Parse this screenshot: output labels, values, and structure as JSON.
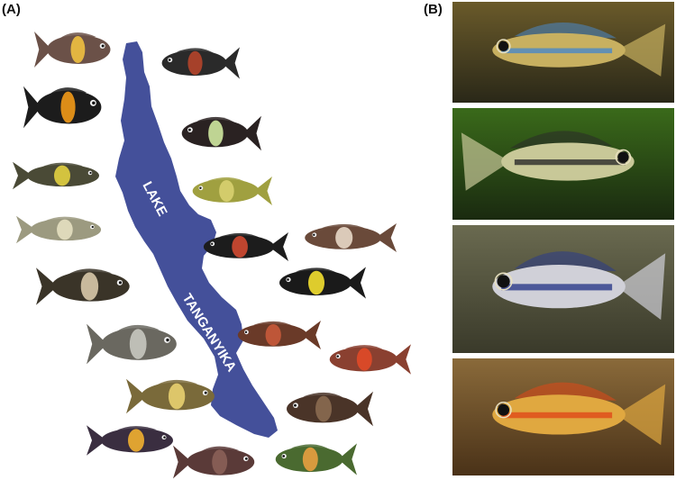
{
  "panel_a": {
    "label": "(A)",
    "lake_text_line1": "LAKE",
    "lake_text_line2": "TANGANYIKA",
    "colors": {
      "lake": "#44509a",
      "lake_text": "#ffffff"
    },
    "fish": [
      {
        "name": "fish-tropheus-1",
        "body": "#6b5148",
        "band": "#f0c040"
      },
      {
        "name": "fish-tropheus-2",
        "body": "#2a2a2a",
        "band": "#b4442a"
      },
      {
        "name": "fish-tropheus-3",
        "body": "#1c1c1c",
        "band": "#f29a18"
      },
      {
        "name": "fish-tropheus-4",
        "body": "#2a2222",
        "band": "#cfe8a0"
      },
      {
        "name": "fish-tropheus-5",
        "body": "#4a4a36",
        "band": "#e2d040"
      },
      {
        "name": "fish-tropheus-6",
        "body": "#a0a040",
        "band": "#d8d070"
      },
      {
        "name": "fish-tropheus-7",
        "body": "#9c9a80",
        "band": "#e6e0c0"
      },
      {
        "name": "fish-tropheus-8",
        "body": "#1c1c1c",
        "band": "#d24a32"
      },
      {
        "name": "fish-tropheus-9",
        "body": "#6a4a3a",
        "band": "#e8d8c8"
      },
      {
        "name": "fish-tropheus-10",
        "body": "#3a3428",
        "band": "#d8c8a8"
      },
      {
        "name": "fish-tropheus-11",
        "body": "#1a1a1a",
        "band": "#f4e030"
      },
      {
        "name": "fish-tropheus-12",
        "body": "#6a6860",
        "band": "#c8c8c0"
      },
      {
        "name": "fish-tropheus-13",
        "body": "#6a3a28",
        "band": "#c85a3a"
      },
      {
        "name": "fish-tropheus-14",
        "body": "#7a6a3a",
        "band": "#e8d070"
      },
      {
        "name": "fish-tropheus-15",
        "body": "#8a4030",
        "band": "#e04a28"
      },
      {
        "name": "fish-tropheus-16",
        "body": "#4a3428",
        "band": "#8a6a50"
      },
      {
        "name": "fish-tropheus-17",
        "body": "#3a2e40",
        "band": "#f2b030"
      },
      {
        "name": "fish-tropheus-18",
        "body": "#5a3a38",
        "band": "#8a6058"
      },
      {
        "name": "fish-tropheus-19",
        "body": "#4a6a30",
        "band": "#e8a040"
      }
    ]
  },
  "panel_b": {
    "label": "(B)",
    "photos": [
      {
        "name": "photo-apistogramma-1",
        "bg_top": "#6a5a2a",
        "bg_bottom": "#2a2818",
        "fish_body": "#c8b060",
        "fish_accent": "#4a88c8"
      },
      {
        "name": "photo-apistogramma-2",
        "bg_top": "#3a6a1a",
        "bg_bottom": "#1a2a10",
        "fish_body": "#c8c898",
        "fish_accent": "#2a2a2a"
      },
      {
        "name": "photo-apistogramma-3",
        "bg_top": "#6a6a50",
        "bg_bottom": "#3a3a2a",
        "fish_body": "#d0d0d8",
        "fish_accent": "#2a3a8a"
      },
      {
        "name": "photo-apistogramma-4",
        "bg_top": "#8a6a3a",
        "bg_bottom": "#4a3218",
        "fish_body": "#e0a840",
        "fish_accent": "#e04818"
      }
    ]
  }
}
